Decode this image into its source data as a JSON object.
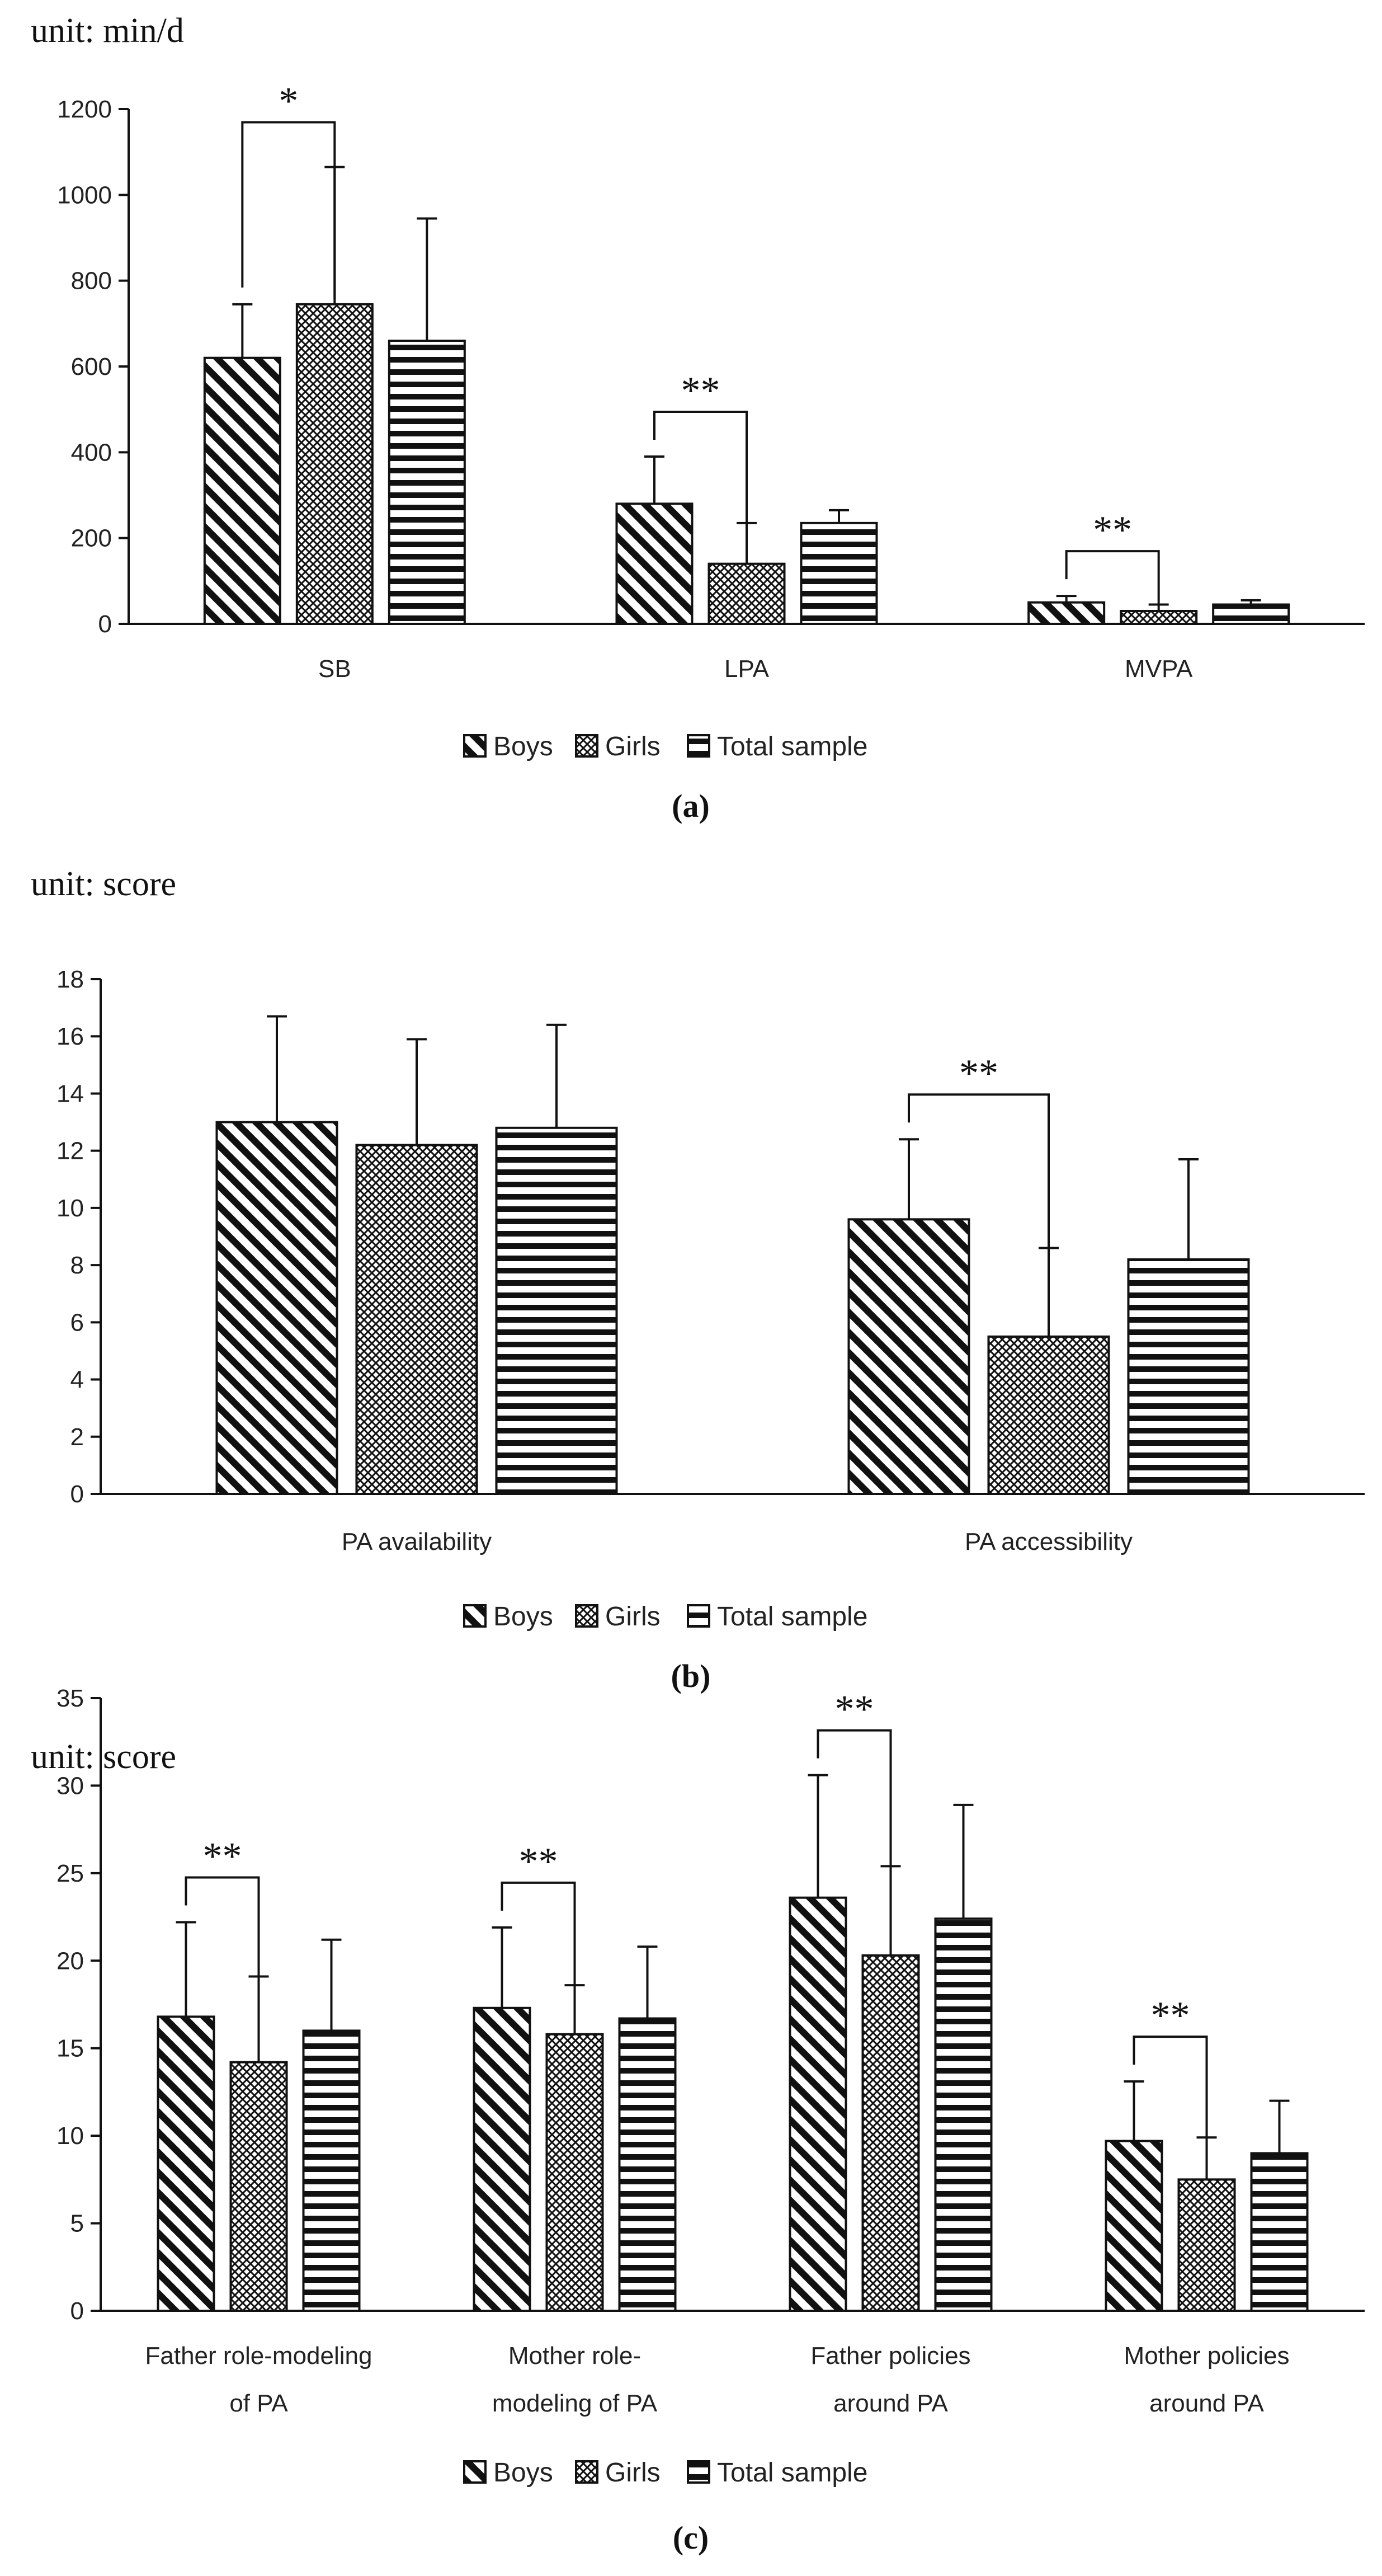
{
  "colors": {
    "ink": "#111111",
    "axis": "#111111",
    "background": "#ffffff"
  },
  "legend": [
    "Boys",
    "Girls",
    "Total sample"
  ],
  "chart_data": [
    {
      "type": "bar",
      "unit_label": "unit: min/d",
      "caption": "(a)",
      "categories": [
        "SB",
        "LPA",
        "MVPA"
      ],
      "series": [
        {
          "name": "Boys",
          "pattern": "diagonal",
          "values": [
            620,
            280,
            50
          ],
          "errors": [
            125,
            110,
            15
          ]
        },
        {
          "name": "Girls",
          "pattern": "crosshatch",
          "values": [
            745,
            140,
            30
          ],
          "errors": [
            320,
            95,
            15
          ]
        },
        {
          "name": "Total sample",
          "pattern": "horizontal",
          "values": [
            660,
            235,
            45
          ],
          "errors": [
            285,
            30,
            10
          ]
        }
      ],
      "ylim": [
        0,
        1200
      ],
      "yticks": [
        0,
        200,
        400,
        600,
        800,
        1000,
        1200
      ],
      "significance": [
        {
          "category": 0,
          "label": "*"
        },
        {
          "category": 1,
          "label": "**"
        },
        {
          "category": 2,
          "label": "**"
        }
      ]
    },
    {
      "type": "bar",
      "unit_label": "unit: score",
      "caption": "(b)",
      "categories": [
        "PA availability",
        "PA accessibility"
      ],
      "series": [
        {
          "name": "Boys",
          "pattern": "diagonal",
          "values": [
            13.0,
            9.6
          ],
          "errors": [
            3.7,
            2.8
          ]
        },
        {
          "name": "Girls",
          "pattern": "crosshatch",
          "values": [
            12.2,
            5.5
          ],
          "errors": [
            3.7,
            3.1
          ]
        },
        {
          "name": "Total sample",
          "pattern": "horizontal",
          "values": [
            12.8,
            8.2
          ],
          "errors": [
            3.6,
            3.5
          ]
        }
      ],
      "ylim": [
        0,
        18
      ],
      "yticks": [
        0,
        2,
        4,
        6,
        8,
        10,
        12,
        14,
        16,
        18
      ],
      "significance": [
        {
          "category": 1,
          "label": "**"
        }
      ]
    },
    {
      "type": "bar",
      "unit_label": "unit: score",
      "caption": "(c)",
      "categories": [
        "Father role-modeling of PA",
        "Mother role-modeling of PA",
        "Father policies around PA",
        "Mother policies around PA"
      ],
      "category_lines": [
        [
          "Father role-modeling",
          "of PA"
        ],
        [
          "Mother role-",
          "modeling of PA"
        ],
        [
          "Father policies",
          "around PA"
        ],
        [
          "Mother policies",
          "around PA"
        ]
      ],
      "series": [
        {
          "name": "Boys",
          "pattern": "diagonal",
          "values": [
            16.8,
            17.3,
            23.6,
            9.7
          ],
          "errors": [
            5.4,
            4.6,
            7.0,
            3.4
          ]
        },
        {
          "name": "Girls",
          "pattern": "crosshatch",
          "values": [
            14.2,
            15.8,
            20.3,
            7.5
          ],
          "errors": [
            4.9,
            2.8,
            5.1,
            2.4
          ]
        },
        {
          "name": "Total sample",
          "pattern": "horizontal",
          "values": [
            16.0,
            16.7,
            22.4,
            9.0
          ],
          "errors": [
            5.2,
            4.1,
            6.5,
            3.0
          ]
        }
      ],
      "ylim": [
        0,
        35
      ],
      "yticks": [
        0,
        5,
        10,
        15,
        20,
        25,
        30,
        35
      ],
      "significance": [
        {
          "category": 0,
          "label": "**"
        },
        {
          "category": 1,
          "label": "**"
        },
        {
          "category": 2,
          "label": "**"
        },
        {
          "category": 3,
          "label": "**"
        }
      ]
    }
  ]
}
